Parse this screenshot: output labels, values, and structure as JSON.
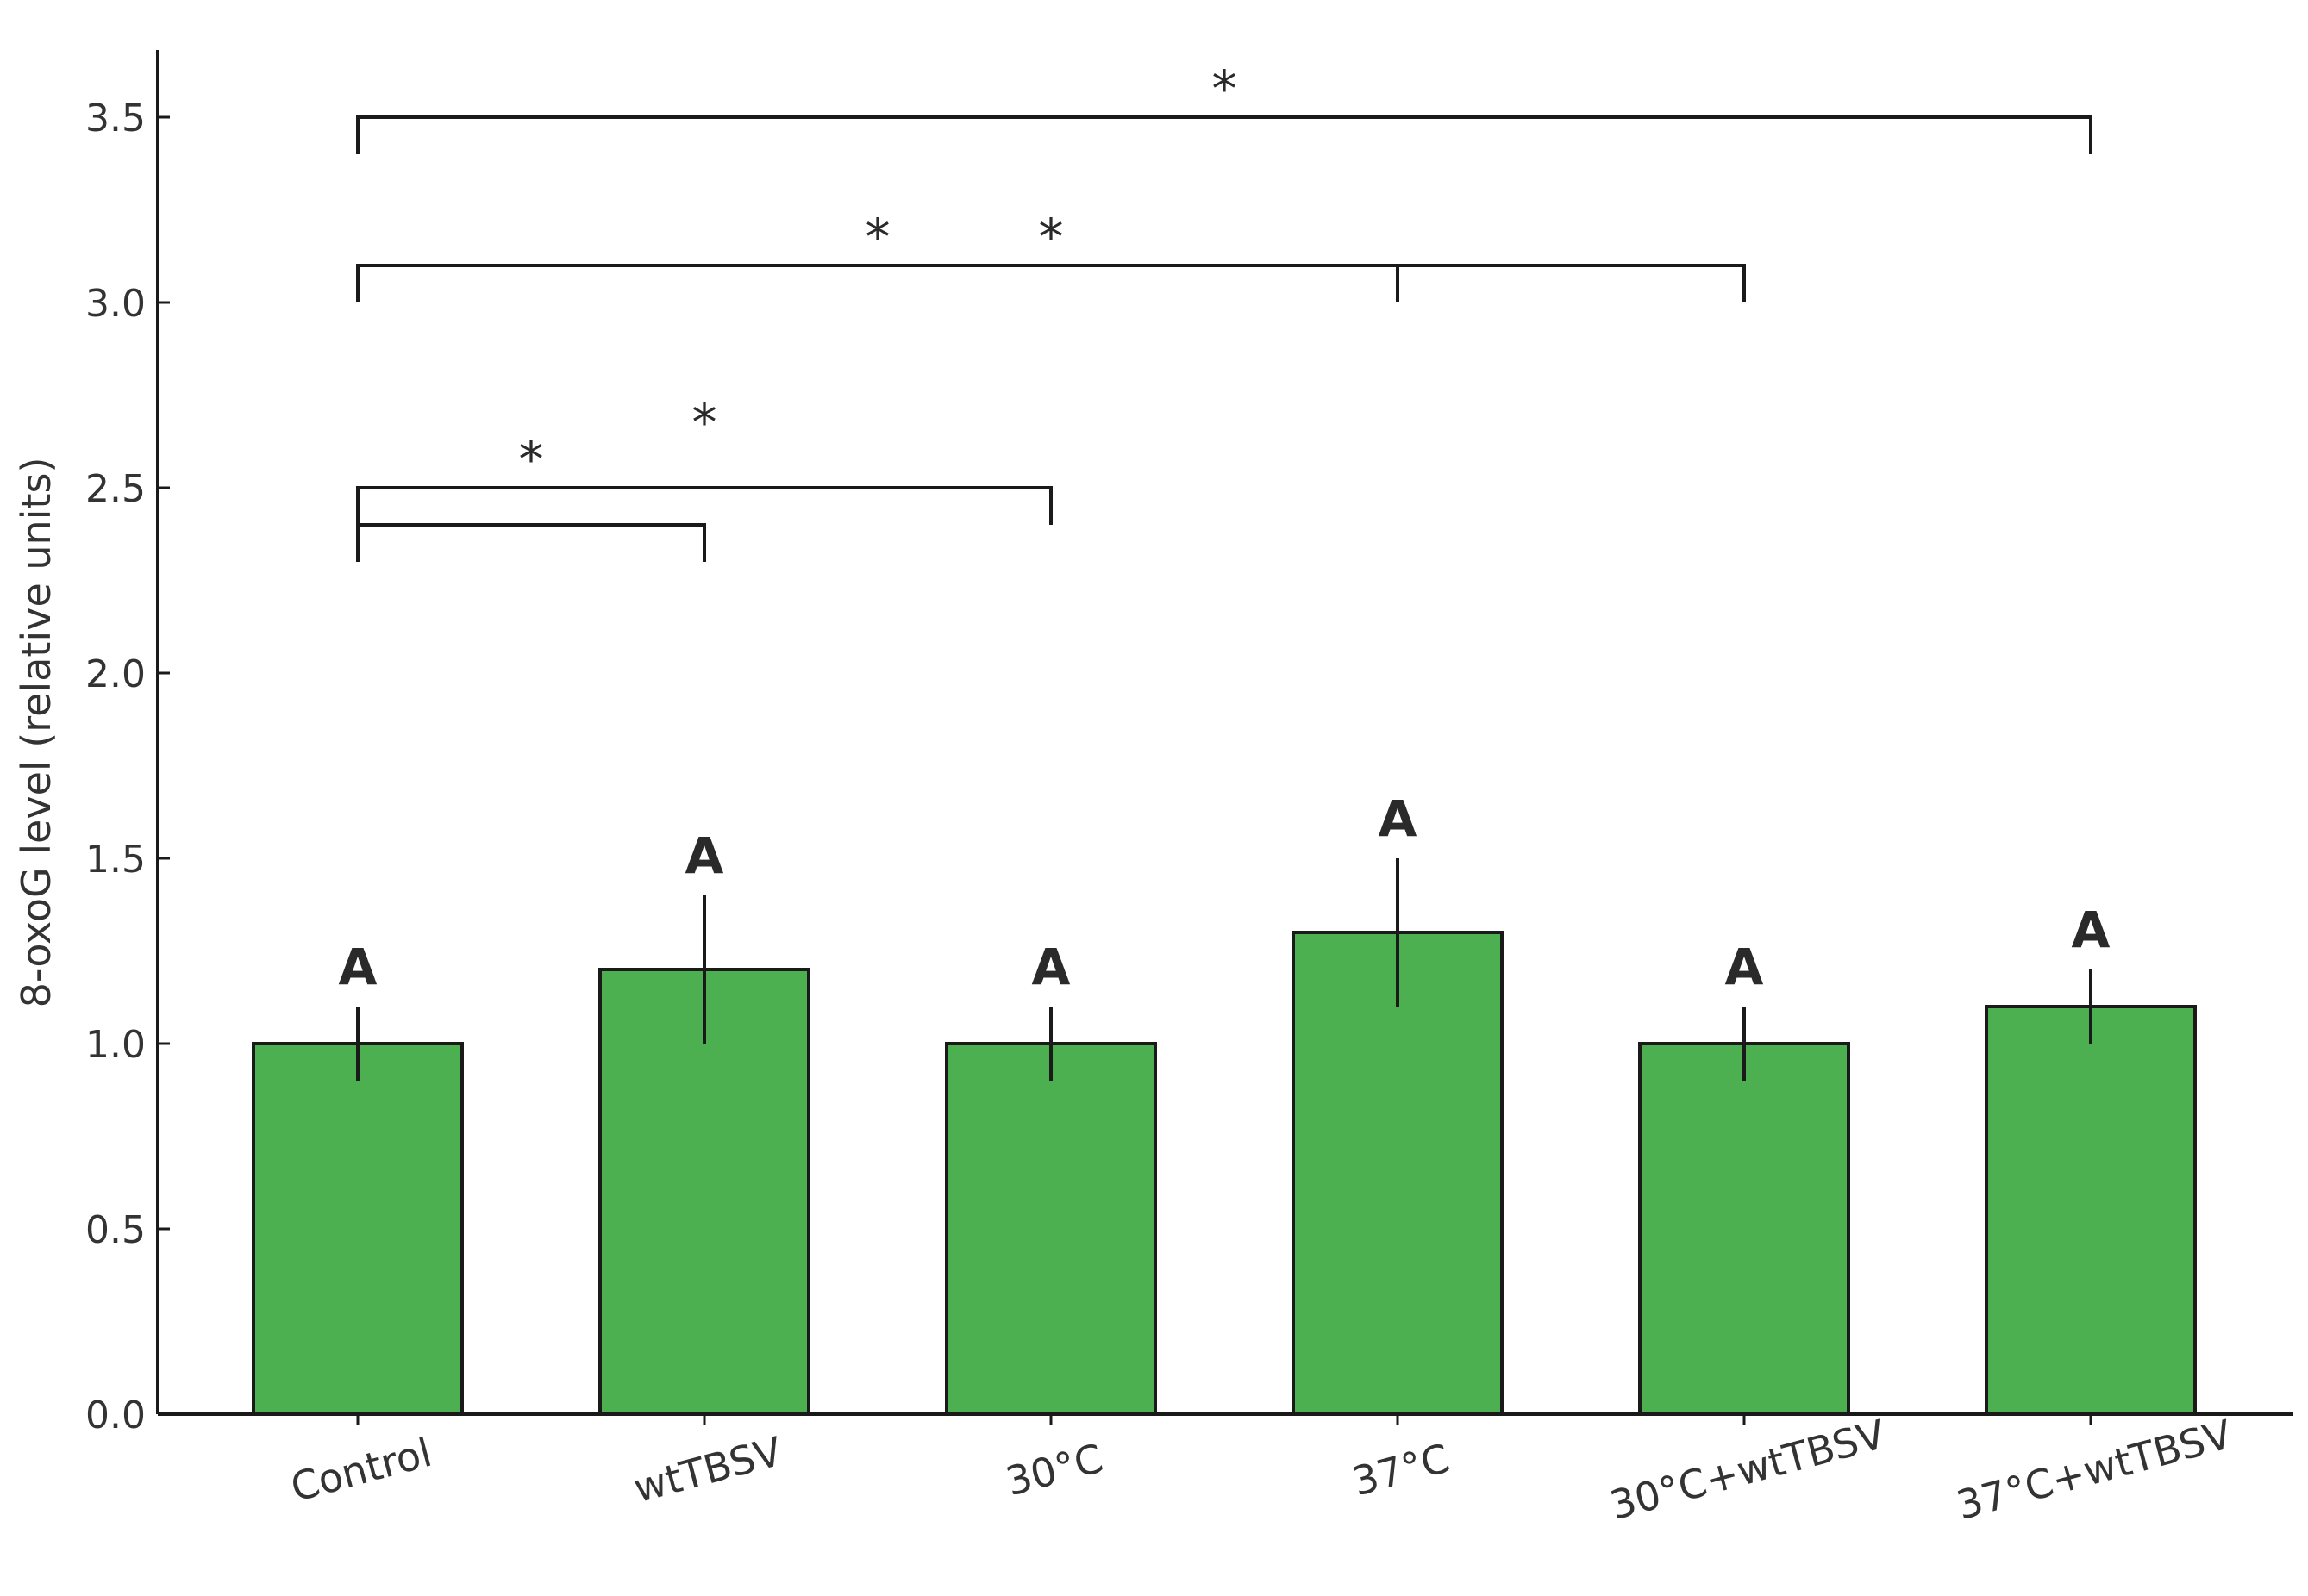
{
  "chart_data": {
    "type": "bar",
    "title": "",
    "xlabel": "",
    "ylabel": "8-oxoG level (relative units)",
    "categories": [
      "Control",
      "wtTBSV",
      "30°C",
      "37°C",
      "30°C+wtTBSV",
      "37°C+wtTBSV"
    ],
    "values": [
      1.0,
      1.2,
      1.0,
      1.3,
      1.0,
      1.1
    ],
    "errors": [
      0.1,
      0.2,
      0.1,
      0.2,
      0.1,
      0.1
    ],
    "group_letters": [
      "A",
      "A",
      "A",
      "A",
      "A",
      "A"
    ],
    "ylim": [
      0,
      3.68
    ],
    "yticks": [
      "0.0",
      "0.5",
      "1.0",
      "1.5",
      "2.0",
      "2.5",
      "3.0",
      "3.5"
    ],
    "bar_color": "#4caf50",
    "edge_color": "#1a1a1a",
    "grid": false,
    "significance": [
      {
        "from": 0,
        "to": 1,
        "y": 2.4,
        "label": "*"
      },
      {
        "from": 0,
        "to": 2,
        "y": 2.5,
        "label": "*"
      },
      {
        "from": 0,
        "to": 4,
        "y": 3.1,
        "label": "*",
        "mid": 3
      },
      {
        "from": 0,
        "to": 5,
        "y": 3.5,
        "label": "*"
      }
    ],
    "star_positions": [
      {
        "x": 0.5,
        "y": 2.6
      },
      {
        "x": 1.0,
        "y": 2.7
      },
      {
        "x": 1.5,
        "y": 3.2
      },
      {
        "x": 2.0,
        "y": 3.2
      },
      {
        "x": 2.5,
        "y": 3.6
      }
    ]
  }
}
